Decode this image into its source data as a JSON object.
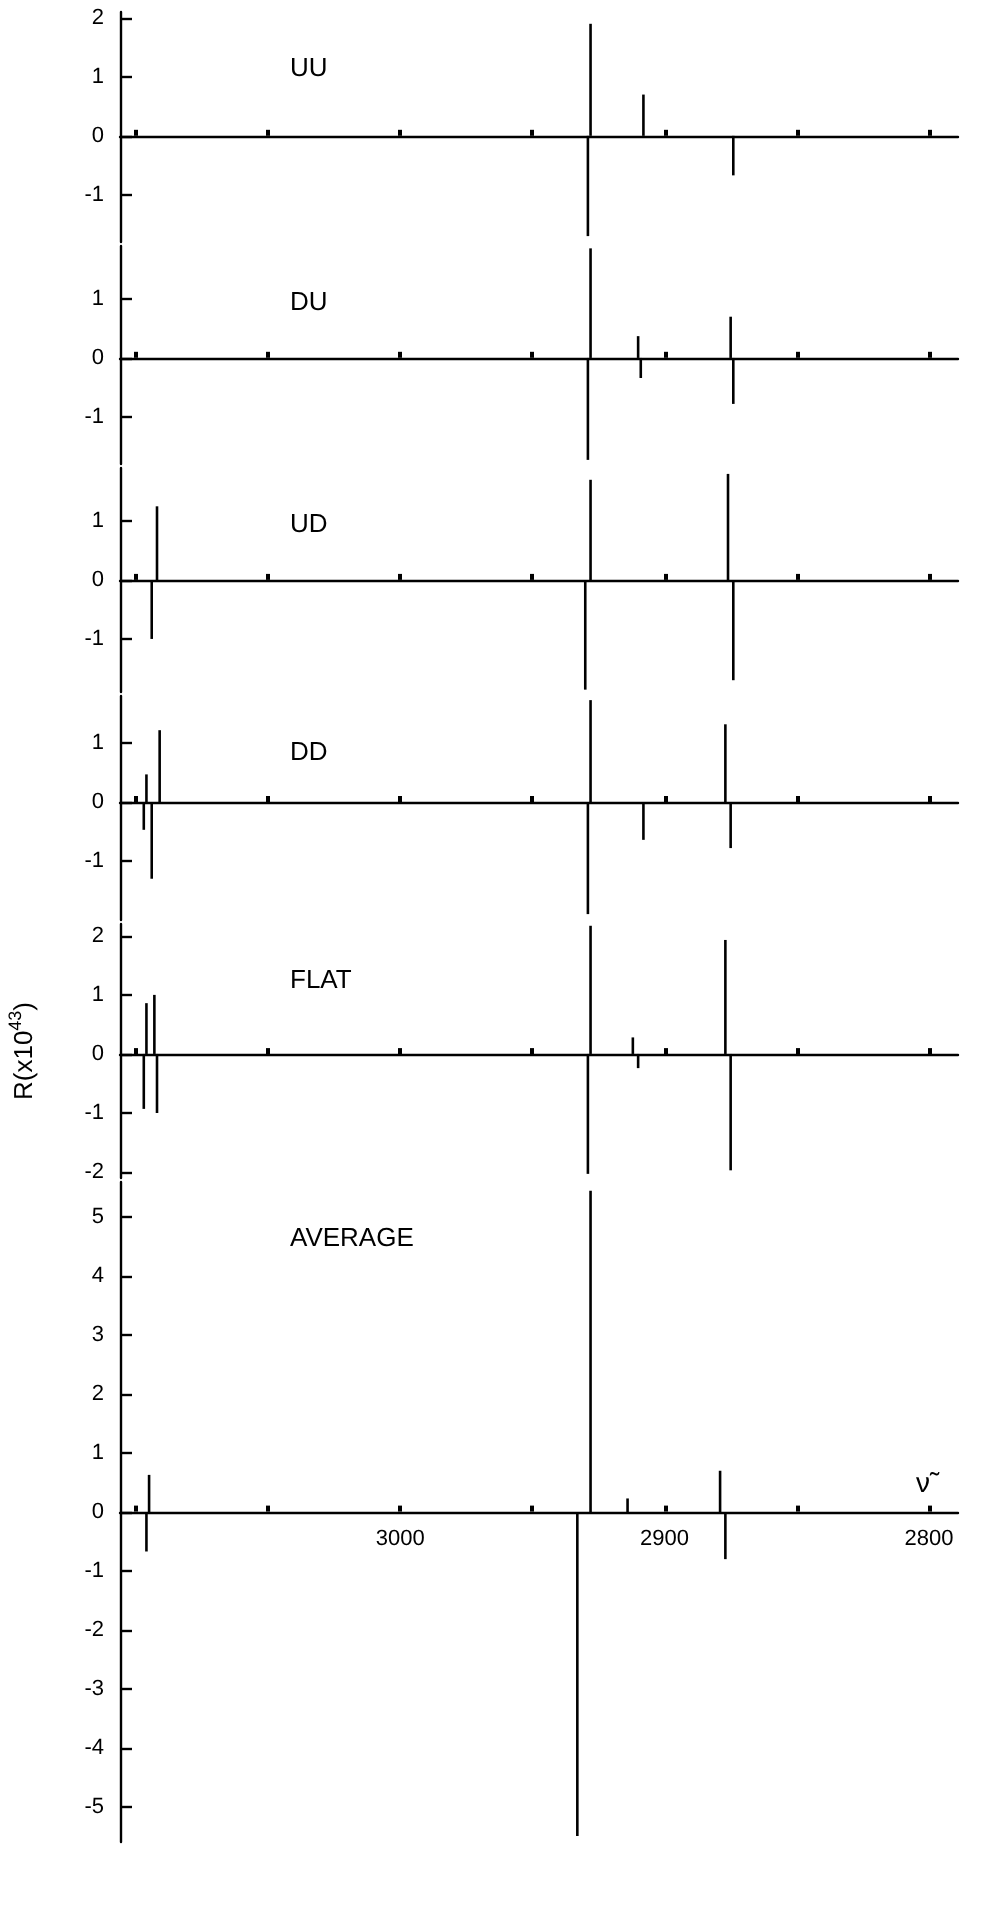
{
  "chart_data": [
    {
      "type": "bar",
      "title": "UU",
      "color": "#000000",
      "x": [
        2929,
        2928,
        2908,
        2874
      ],
      "values": [
        -1.7,
        1.9,
        0.7,
        -0.67
      ],
      "xlim": [
        3106,
        2789
      ],
      "ylim": [
        -1.8,
        2.1
      ],
      "yticks": [
        -1,
        0,
        1,
        2
      ],
      "xticks": [
        {
          "value": 3100,
          "label": null
        },
        {
          "value": 3050,
          "label": null
        },
        {
          "value": 3000,
          "label": null
        },
        {
          "value": 2950,
          "label": null
        },
        {
          "value": 2900,
          "label": null
        },
        {
          "value": 2850,
          "label": null
        },
        {
          "value": 2800,
          "label": null
        }
      ],
      "tick_labels": "y"
    },
    {
      "type": "bar",
      "title": "DU",
      "color": "#000000",
      "x": [
        2929,
        2928,
        2910,
        2909,
        2875,
        2874
      ],
      "values": [
        -1.73,
        1.86,
        0.37,
        -0.34,
        0.7,
        -0.78
      ],
      "xlim": [
        3106,
        2789
      ],
      "ylim": [
        -1.8,
        1.9
      ],
      "yticks": [
        -1,
        0,
        1
      ],
      "xticks": [
        {
          "value": 3100,
          "label": null
        },
        {
          "value": 3050,
          "label": null
        },
        {
          "value": 3000,
          "label": null
        },
        {
          "value": 2950,
          "label": null
        },
        {
          "value": 2900,
          "label": null
        },
        {
          "value": 2850,
          "label": null
        },
        {
          "value": 2800,
          "label": null
        }
      ],
      "tick_labels": "y"
    },
    {
      "type": "bar",
      "title": "UD",
      "color": "#000000",
      "x": [
        3094,
        3092,
        2930,
        2928,
        2876,
        2874
      ],
      "values": [
        -1.0,
        1.25,
        -1.86,
        1.7,
        1.8,
        -1.7
      ],
      "xlim": [
        3106,
        2789
      ],
      "ylim": [
        -1.9,
        1.9
      ],
      "yticks": [
        -1,
        0,
        1
      ],
      "xticks": [
        {
          "value": 3100,
          "label": null
        },
        {
          "value": 3050,
          "label": null
        },
        {
          "value": 3000,
          "label": null
        },
        {
          "value": 2950,
          "label": null
        },
        {
          "value": 2900,
          "label": null
        },
        {
          "value": 2850,
          "label": null
        },
        {
          "value": 2800,
          "label": null
        }
      ],
      "tick_labels": "y"
    },
    {
      "type": "bar",
      "title": "DD",
      "color": "#000000",
      "x": [
        3097,
        3096,
        3094,
        3091,
        2929,
        2928,
        2908,
        2877,
        2875
      ],
      "values": [
        -0.47,
        0.47,
        -1.3,
        1.22,
        -1.9,
        1.73,
        -0.64,
        1.32,
        -0.78
      ],
      "xlim": [
        3106,
        2789
      ],
      "ylim": [
        -2,
        1.8
      ],
      "yticks": [
        -1,
        0,
        1
      ],
      "xticks": [
        {
          "value": 3100,
          "label": null
        },
        {
          "value": 3050,
          "label": null
        },
        {
          "value": 3000,
          "label": null
        },
        {
          "value": 2950,
          "label": null
        },
        {
          "value": 2900,
          "label": null
        },
        {
          "value": 2850,
          "label": null
        },
        {
          "value": 2800,
          "label": null
        }
      ],
      "tick_labels": "y"
    },
    {
      "type": "bar",
      "title": "FLAT",
      "ylabel": "R(x10$^{43}$)",
      "color": "#000000",
      "x": [
        3097,
        3096,
        3093,
        3092,
        2929,
        2928,
        2912,
        2910,
        2877,
        2875
      ],
      "values": [
        -0.93,
        0.86,
        1.0,
        -1.0,
        -2.03,
        2.17,
        0.28,
        -0.24,
        1.93,
        -1.97
      ],
      "xlim": [
        3106,
        2789
      ],
      "ylim": [
        -2.1,
        2.2
      ],
      "yticks": [
        -2,
        -1,
        0,
        1,
        2
      ],
      "xticks": [
        {
          "value": 3100,
          "label": null
        },
        {
          "value": 3050,
          "label": null
        },
        {
          "value": 3000,
          "label": null
        },
        {
          "value": 2950,
          "label": null
        },
        {
          "value": 2900,
          "label": null
        },
        {
          "value": 2850,
          "label": null
        },
        {
          "value": 2800,
          "label": null
        }
      ],
      "tick_labels": "y"
    },
    {
      "type": "bar",
      "title": "AVERAGE",
      "xlabel": "ν̃",
      "color": "#000000",
      "x": [
        3096,
        3095,
        2933,
        2928,
        2914,
        2879,
        2877
      ],
      "values": [
        -0.67,
        0.63,
        -5.5,
        5.45,
        0.23,
        0.7,
        -0.8
      ],
      "xlim": [
        3106,
        2789
      ],
      "ylim": [
        -5.6,
        5.6
      ],
      "yticks": [
        -5,
        -4,
        -3,
        -2,
        -1,
        0,
        1,
        2,
        3,
        4,
        5
      ],
      "xticks": [
        {
          "value": 3100,
          "label": null
        },
        {
          "value": 3050,
          "label": null
        },
        3000,
        {
          "value": 2950,
          "label": null
        },
        2900,
        {
          "value": 2850,
          "label": null
        },
        2800
      ]
    }
  ]
}
